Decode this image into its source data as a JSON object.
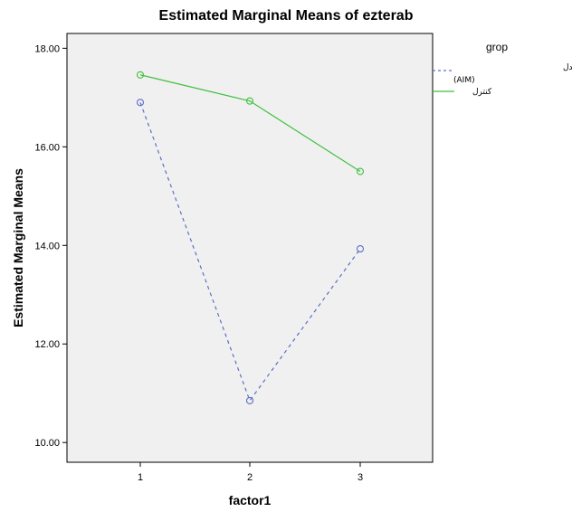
{
  "chart_data": {
    "type": "line",
    "title": "Estimated Marginal Means of ezterab",
    "xlabel": "factor1",
    "ylabel": "Estimated Marginal Means",
    "categories": [
      "1",
      "2",
      "3"
    ],
    "y_ticks": [
      "10.00",
      "12.00",
      "14.00",
      "16.00",
      "18.00"
    ],
    "ylim": [
      9.6,
      18.3
    ],
    "grid": false,
    "legend_title": "grop",
    "legend_position": "right",
    "series": [
      {
        "name": "مصاحبه انگیزشی منطبق با مدل (AIM)",
        "name_line1": "مصاحبه انگیزشی منطبق با مدل",
        "name_line2": "(AIM)",
        "values": [
          16.9,
          10.85,
          13.93
        ],
        "color": "#5a6fc8",
        "line_style": "dashed",
        "marker": "circle"
      },
      {
        "name": "کنترل",
        "values": [
          17.46,
          16.93,
          15.5
        ],
        "color": "#3fbf3f",
        "line_style": "solid",
        "marker": "circle"
      }
    ],
    "plot_background": "#f0f0f0"
  }
}
